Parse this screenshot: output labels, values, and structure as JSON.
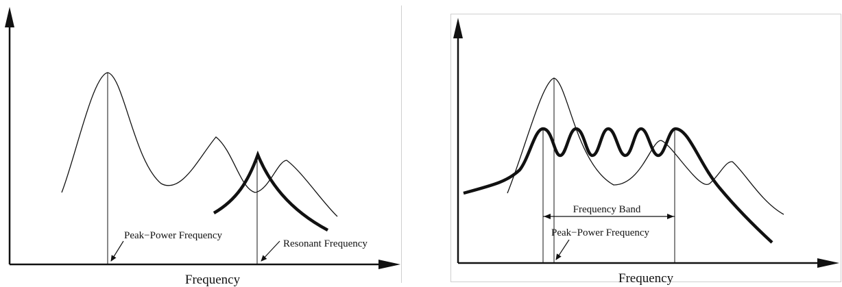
{
  "left_panel": {
    "x_axis_label": "Frequency",
    "label_peak_power": "Peak−Power Frequency",
    "label_resonant": "Resonant Frequency"
  },
  "right_panel": {
    "x_axis_label": "Frequency",
    "label_band": "Frequency Band",
    "label_peak_power": "Peak−Power Frequency"
  },
  "colors": {
    "line": "#111111",
    "frame": "#cfcfcf"
  }
}
